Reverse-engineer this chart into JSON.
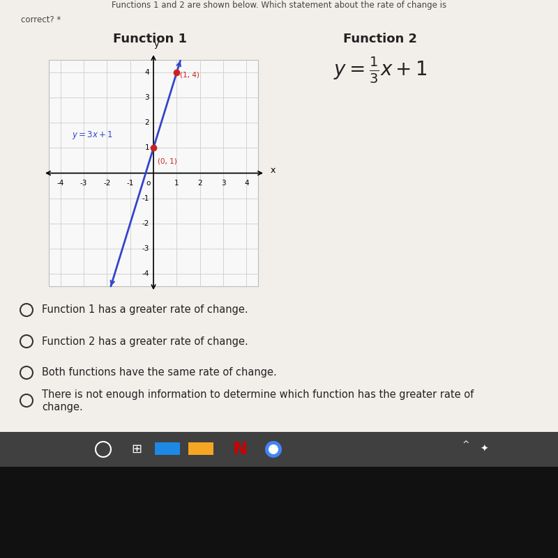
{
  "page_bg": "#ddd8d0",
  "white_panel_bg": "#f0eeea",
  "func1_title": "Function 1",
  "func2_title": "Function 2",
  "func2_equation": "$y = \\frac{1}{3}x + 1$",
  "func1_equation": "$y = 3x + 1$",
  "line_color": "#3344cc",
  "point_color": "#cc2222",
  "point1": [
    0,
    1
  ],
  "point2": [
    1,
    4
  ],
  "point1_label": "(0, 1)",
  "point2_label": "(1, 4)",
  "xlim": [
    -4.5,
    4.5
  ],
  "ylim": [
    -4.5,
    4.5
  ],
  "xticks": [
    -4,
    -3,
    -2,
    -1,
    1,
    2,
    3,
    4
  ],
  "yticks": [
    -4,
    -3,
    -2,
    -1,
    1,
    2,
    3,
    4
  ],
  "option1": "Function 1 has a greater rate of change.",
  "option2": "Function 2 has a greater rate of change.",
  "option3": "Both functions have the same rate of change.",
  "option4_line1": "There is not enough information to determine which function has the greater rate of",
  "option4_line2": "change.",
  "text_color": "#222222",
  "header_line1": "Functions 1 and 2 are shown below. Which statement about the rate of change is",
  "header_line2": "correct? *",
  "taskbar_bg": "#3a3a3a",
  "taskbar_dark": "#1a1a1a",
  "graph_border": "#bbbbbb",
  "grid_color": "#cccccc"
}
